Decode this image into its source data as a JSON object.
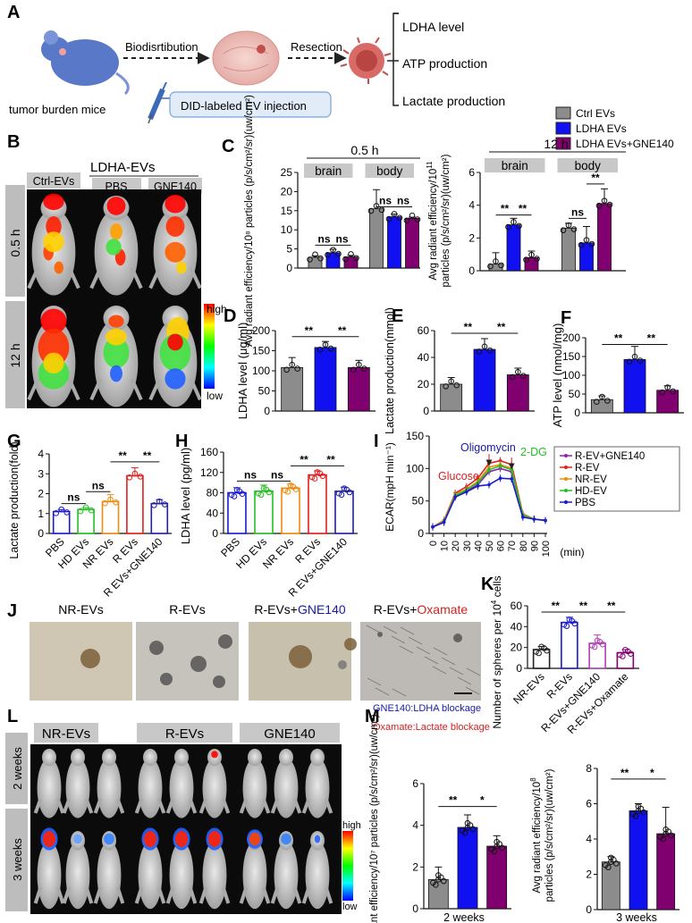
{
  "panels": {
    "A": {
      "letter": "A",
      "mouse_label": "tumor burden mice",
      "step1": "Biodisrtibution",
      "step2": "Resection",
      "injection": "DID-labeled EV injection",
      "outputs": [
        "LDHA level",
        "ATP production",
        "Lactate production"
      ]
    },
    "B": {
      "letter": "B",
      "groups": [
        "Ctrl-EVs",
        "PBS",
        "GNE140"
      ],
      "super_header": "LDHA-EVs",
      "times": [
        "0.5 h",
        "12 h"
      ],
      "scale_high": "high",
      "scale_low": "low"
    },
    "C": {
      "letter": "C"
    },
    "D": {
      "letter": "D"
    },
    "E": {
      "letter": "E"
    },
    "F": {
      "letter": "F"
    },
    "G": {
      "letter": "G"
    },
    "H": {
      "letter": "H"
    },
    "I": {
      "letter": "I"
    },
    "J": {
      "letter": "J",
      "images": [
        {
          "prefix": "NR-EVs",
          "suffix": ""
        },
        {
          "prefix": "R-EVs",
          "suffix": ""
        },
        {
          "prefix": "R-EVs+",
          "suffix": "GNE140"
        },
        {
          "prefix": "R-EVs+",
          "suffix": "Oxamate"
        }
      ],
      "note1": "GNE140:LDHA blockage",
      "note2": "Oxamate:Lactate blockage",
      "suffix_colors": {
        "GNE140": "#1a1aa6",
        "Oxamate": "#d42020"
      }
    },
    "K": {
      "letter": "K"
    },
    "L": {
      "letter": "L",
      "groups": [
        "NR-EVs",
        "R-EVs",
        "GNE140"
      ],
      "times": [
        "2 weeks",
        "3 weeks"
      ],
      "scale_high": "high",
      "scale_low": "low"
    },
    "M": {
      "letter": "M"
    }
  },
  "legend_C": {
    "items": [
      "Ctrl EVs",
      "LDHA EVs",
      "LDHA EVs+GNE140"
    ],
    "colors": [
      "#8c8c8c",
      "#1010f0",
      "#800070"
    ]
  },
  "colors": {
    "gray": "#8c8c8c",
    "blue": "#1010f0",
    "purple": "#800070",
    "header_gray": "#c8c8c8"
  },
  "chart_data": [
    {
      "id": "C1",
      "type": "bar",
      "title": "0.5 h",
      "ylabel": "Avg radiant efficiency/10⁸ particles (p/s/cm²/sr)(uw/cm²)",
      "groups": [
        "brain",
        "body"
      ],
      "series": [
        "Ctrl EVs",
        "LDHA EVs",
        "LDHA EVs+GNE140"
      ],
      "values": [
        [
          2.8,
          4.0,
          2.9
        ],
        [
          15.5,
          13.4,
          13.0
        ]
      ],
      "errors": [
        [
          0.4,
          0.9,
          0.4
        ],
        [
          5.0,
          0.7,
          0.3
        ]
      ],
      "ylim": [
        0,
        25
      ],
      "yticks": [
        0,
        5,
        10,
        15,
        20,
        25
      ],
      "significance": [
        "ns",
        "ns",
        "ns",
        "ns"
      ]
    },
    {
      "id": "C2",
      "type": "bar",
      "title": "12 h",
      "ylabel_prefix": "Avg radiant efficiency/10",
      "ylabel_exp": "11",
      "ylabel_line2": "particles (p/s/cm²/sr)(uw/cm²)",
      "groups": [
        "brain",
        "body"
      ],
      "series": [
        "Ctrl EVs",
        "LDHA EVs",
        "LDHA EVs+GNE140"
      ],
      "values": [
        [
          0.4,
          2.8,
          0.8
        ],
        [
          2.6,
          1.7,
          4.1
        ]
      ],
      "errors": [
        [
          0.7,
          0.4,
          0.4
        ],
        [
          0.3,
          1.0,
          0.9
        ]
      ],
      "ylim": [
        0,
        6
      ],
      "yticks": [
        0,
        2,
        4,
        6
      ],
      "significance": [
        "**",
        "**",
        "ns",
        "**"
      ]
    },
    {
      "id": "D",
      "type": "bar",
      "ylabel": "LDHA level (μg/ml)",
      "categories": [
        "Ctrl EVs",
        "LDHA EVs",
        "LDHA EVs+GNE140"
      ],
      "values": [
        108,
        158,
        108
      ],
      "errors": [
        25,
        15,
        18
      ],
      "ylim": [
        0,
        200
      ],
      "yticks": [
        0,
        50,
        100,
        150,
        200
      ],
      "significance": [
        "**",
        "**"
      ]
    },
    {
      "id": "E",
      "type": "bar",
      "ylabel": "Lactate production(mmol)",
      "categories": [
        "Ctrl EVs",
        "LDHA EVs",
        "LDHA EVs+GNE140"
      ],
      "values": [
        20,
        46,
        27
      ],
      "errors": [
        5,
        8,
        5
      ],
      "ylim": [
        0,
        60
      ],
      "yticks": [
        0,
        20,
        40,
        60
      ],
      "significance": [
        "**",
        "**"
      ]
    },
    {
      "id": "F",
      "type": "bar",
      "ylabel": "ATP level (nmol/mg)",
      "categories": [
        "Ctrl EVs",
        "LDHA EVs",
        "LDHA EVs+GNE140"
      ],
      "values": [
        35,
        142,
        60
      ],
      "errors": [
        10,
        35,
        12
      ],
      "ylim": [
        0,
        200
      ],
      "yticks": [
        0,
        50,
        100,
        150,
        200
      ],
      "significance": [
        "**",
        "**"
      ]
    },
    {
      "id": "G",
      "type": "bar",
      "ylabel": "Lactate production(fold)",
      "categories": [
        "PBS",
        "HD EVs",
        "NR EVs",
        "R EVs",
        "R EVs+GNE140"
      ],
      "values": [
        1.1,
        1.2,
        1.6,
        2.9,
        1.5
      ],
      "errors": [
        0.1,
        0.1,
        0.35,
        0.4,
        0.2
      ],
      "colors": [
        "#1a1ad0",
        "#22c022",
        "#f08a10",
        "#e02020",
        "#2020a0"
      ],
      "ylim": [
        0,
        4
      ],
      "yticks": [
        0,
        1,
        2,
        3,
        4
      ],
      "significance": [
        "ns",
        "ns",
        "**",
        "**"
      ]
    },
    {
      "id": "H",
      "type": "bar",
      "ylabel": "LDHA level (pg/ml)",
      "categories": [
        "PBS",
        "HD EVs",
        "NR EVs",
        "R EVs",
        "R EVs+GNE140"
      ],
      "values": [
        80,
        83,
        89,
        115,
        83
      ],
      "errors": [
        10,
        12,
        8,
        8,
        8
      ],
      "colors": [
        "#1a1ad0",
        "#22c022",
        "#f08a10",
        "#e02020",
        "#2020a0"
      ],
      "ylim": [
        0,
        160
      ],
      "yticks": [
        0,
        40,
        80,
        120,
        160
      ],
      "significance": [
        "ns",
        "ns",
        "**",
        "**"
      ]
    },
    {
      "id": "I",
      "type": "line",
      "ylabel": "ECAR(mpH min⁻¹)",
      "xlabel": "(min)",
      "x": [
        0,
        10,
        20,
        30,
        40,
        50,
        60,
        70,
        80,
        90,
        100
      ],
      "xlim": [
        0,
        100
      ],
      "xticks": [
        0,
        10,
        20,
        30,
        40,
        50,
        60,
        70,
        80,
        90,
        100
      ],
      "ylim": [
        0,
        150
      ],
      "yticks": [
        0,
        50,
        100,
        150
      ],
      "series": [
        {
          "name": "R-EV+GNE140",
          "color": "#9020b0",
          "values": [
            10,
            18,
            58,
            65,
            75,
            95,
            100,
            95,
            28,
            22,
            20
          ]
        },
        {
          "name": "R-EV",
          "color": "#e02020",
          "values": [
            10,
            20,
            62,
            72,
            85,
            108,
            112,
            106,
            30,
            22,
            20
          ]
        },
        {
          "name": "NR-EV",
          "color": "#f08a10",
          "values": [
            10,
            19,
            60,
            68,
            80,
            102,
            106,
            100,
            29,
            22,
            20
          ]
        },
        {
          "name": "HD-EV",
          "color": "#22c022",
          "values": [
            10,
            18,
            58,
            67,
            78,
            98,
            104,
            98,
            28,
            22,
            20
          ]
        },
        {
          "name": "PBS",
          "color": "#1a1ad0",
          "values": [
            10,
            17,
            56,
            64,
            73,
            75,
            85,
            84,
            25,
            22,
            20
          ]
        }
      ],
      "annotations": [
        {
          "text": "Glucose",
          "color": "#d42020",
          "x": 20
        },
        {
          "text": "Oligomycin",
          "color": "#1a1aa6",
          "x": 50
        },
        {
          "text": "2-DG",
          "color": "#22c022",
          "x": 70
        }
      ]
    },
    {
      "id": "K",
      "type": "bar",
      "ylabel_prefix": "Number of spheres per 10",
      "ylabel_exp": "4",
      "ylabel_suffix": " cells",
      "categories": [
        "NR-EVs",
        "R-EVs",
        "R-EVs+GNE140",
        "R-EVs+Oxamate"
      ],
      "values": [
        18,
        44,
        24,
        15
      ],
      "errors": [
        3,
        5,
        8,
        3
      ],
      "colors": [
        "#222222",
        "#1a1ad0",
        "#b040b0",
        "#800070"
      ],
      "ylim": [
        0,
        60
      ],
      "yticks": [
        0,
        20,
        40,
        60
      ],
      "significance": [
        "**",
        "**",
        "**"
      ]
    },
    {
      "id": "M1",
      "type": "bar",
      "title": "2 weeks",
      "ylabel": "Avg radiant efficiency/10⁷ particles (p/s/cm²/sr)(uw/cm²)",
      "categories": [
        "NR-EVs",
        "R-EVs",
        "GNE140"
      ],
      "values": [
        1.4,
        3.9,
        3.0
      ],
      "errors": [
        0.6,
        0.6,
        0.5
      ],
      "ylim": [
        0,
        6
      ],
      "yticks": [
        0,
        2,
        4,
        6
      ],
      "significance": [
        "**",
        "*"
      ]
    },
    {
      "id": "M2",
      "type": "bar",
      "title": "3 weeks",
      "ylabel_prefix": "Avg radiant efficiency/10",
      "ylabel_exp": "8",
      "ylabel_line2": "particles (p/s/cm²/sr)(uw/cm²)",
      "categories": [
        "NR-EVs",
        "R-EVs",
        "GNE140"
      ],
      "values": [
        2.7,
        5.6,
        4.3
      ],
      "errors": [
        0.3,
        0.4,
        1.5
      ],
      "ylim": [
        0,
        8
      ],
      "yticks": [
        0,
        2,
        4,
        6,
        8
      ],
      "significance": [
        "**",
        "*"
      ]
    }
  ]
}
